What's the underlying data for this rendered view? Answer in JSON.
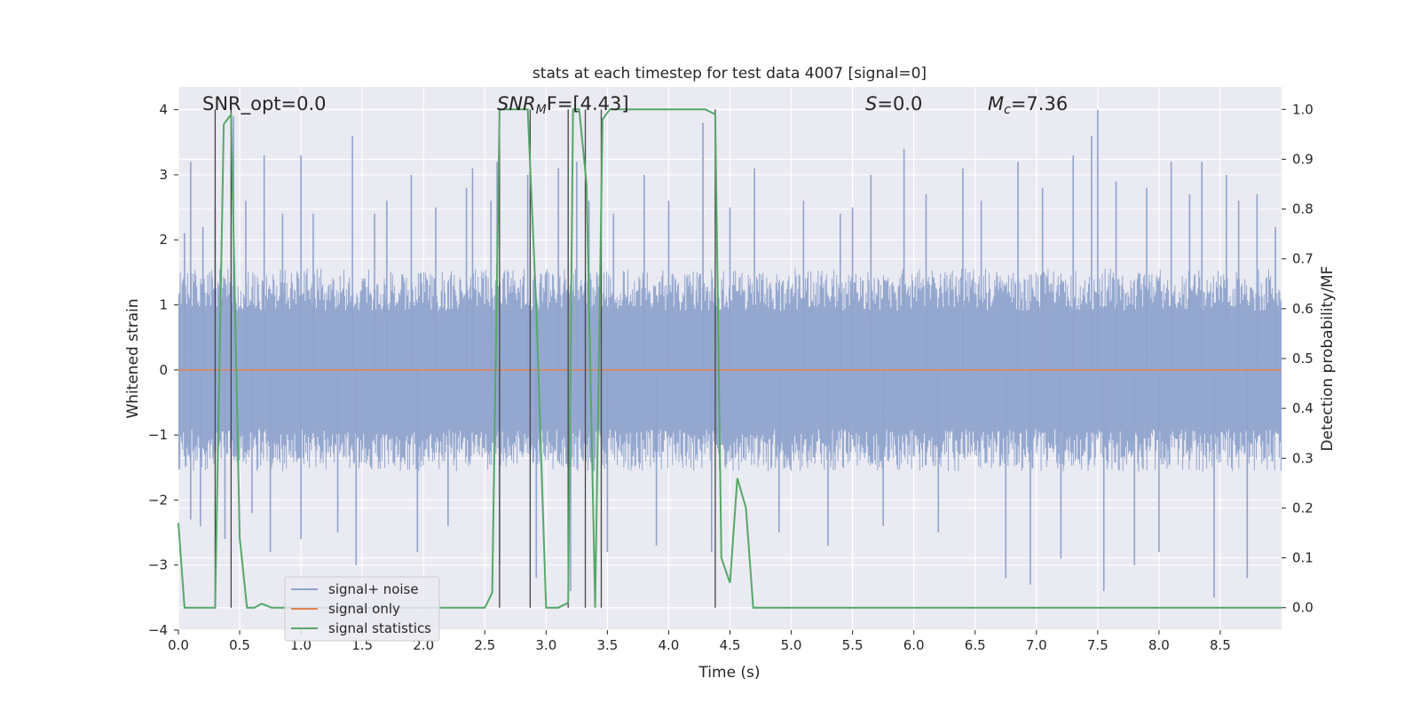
{
  "chart_data": {
    "type": "line",
    "title": "stats at each timestep for test data 4007 [signal=0]",
    "xlabel": "Time (s)",
    "ylabel": "Whitened strain",
    "y2label": "Detection probability/MF",
    "xlim": [
      0,
      9.0
    ],
    "ylim": [
      -4.0,
      4.35
    ],
    "y2lim": [
      -0.045,
      1.045
    ],
    "x_ticks": [
      0.0,
      0.5,
      1.0,
      1.5,
      2.0,
      2.5,
      3.0,
      3.5,
      4.0,
      4.5,
      5.0,
      5.5,
      6.0,
      6.5,
      7.0,
      7.5,
      8.0,
      8.5
    ],
    "x_tick_labels": [
      "0.0",
      "0.5",
      "1.0",
      "1.5",
      "2.0",
      "2.5",
      "3.0",
      "3.5",
      "4.0",
      "4.5",
      "5.0",
      "5.5",
      "6.0",
      "6.5",
      "7.0",
      "7.5",
      "8.0",
      "8.5"
    ],
    "y_ticks": [
      -4,
      -3,
      -2,
      -1,
      0,
      1,
      2,
      3,
      4
    ],
    "y_tick_labels": [
      "−4",
      "−3",
      "−2",
      "−1",
      "0",
      "1",
      "2",
      "3",
      "4"
    ],
    "y2_ticks": [
      0.0,
      0.1,
      0.2,
      0.3,
      0.4,
      0.5,
      0.6,
      0.7,
      0.8,
      0.9,
      1.0
    ],
    "y2_tick_labels": [
      "0.0",
      "0.1",
      "0.2",
      "0.3",
      "0.4",
      "0.5",
      "0.6",
      "0.7",
      "0.8",
      "0.9",
      "1.0"
    ],
    "grid": true,
    "legend_placement": "lower-left",
    "legend": [
      {
        "label": "signal+ noise",
        "color": "#8fa3cc"
      },
      {
        "label": "signal only",
        "color": "#dd8452"
      },
      {
        "label": "signal statistics",
        "color": "#55a868"
      }
    ],
    "annotations": {
      "snr_opt": "SNR_opt=0.0",
      "snr_mf_main": "SNR",
      "snr_mf_sub": "M",
      "snr_mf_rest": "F=[4.43]",
      "s_main": "S",
      "s_rest": "=0.0",
      "mc_main": "M",
      "mc_sub": "c",
      "mc_rest": "=7.36"
    },
    "series": [
      {
        "name": "signal+ noise",
        "color": "#8fa3cc",
        "axis": "left",
        "typical_range": [
          -1.3,
          1.3
        ],
        "peaks": [
          [
            0.05,
            2.1
          ],
          [
            0.1,
            -2.3
          ],
          [
            0.1,
            3.2
          ],
          [
            0.18,
            -2.4
          ],
          [
            0.2,
            2.2
          ],
          [
            0.3,
            2.5
          ],
          [
            0.38,
            -2.6
          ],
          [
            0.45,
            3.9
          ],
          [
            0.55,
            2.6
          ],
          [
            0.6,
            -2.2
          ],
          [
            0.7,
            3.3
          ],
          [
            0.75,
            -2.8
          ],
          [
            0.85,
            2.4
          ],
          [
            1.0,
            3.3
          ],
          [
            1.0,
            -2.6
          ],
          [
            1.1,
            2.4
          ],
          [
            1.3,
            -2.5
          ],
          [
            1.42,
            3.6
          ],
          [
            1.45,
            -3.0
          ],
          [
            1.6,
            2.4
          ],
          [
            1.7,
            2.6
          ],
          [
            1.9,
            3.0
          ],
          [
            1.95,
            -2.8
          ],
          [
            2.1,
            2.5
          ],
          [
            2.2,
            -2.4
          ],
          [
            2.35,
            2.8
          ],
          [
            2.4,
            3.1
          ],
          [
            2.55,
            2.6
          ],
          [
            2.6,
            3.2
          ],
          [
            2.62,
            -3.0
          ],
          [
            2.85,
            3.0
          ],
          [
            2.92,
            -3.2
          ],
          [
            3.1,
            3.1
          ],
          [
            3.2,
            -3.4
          ],
          [
            3.25,
            3.2
          ],
          [
            3.35,
            2.6
          ],
          [
            3.5,
            -2.8
          ],
          [
            3.55,
            2.4
          ],
          [
            3.8,
            3.0
          ],
          [
            3.9,
            -2.7
          ],
          [
            4.0,
            2.6
          ],
          [
            4.28,
            3.8
          ],
          [
            4.35,
            -2.8
          ],
          [
            4.5,
            2.5
          ],
          [
            4.7,
            3.1
          ],
          [
            4.9,
            -2.5
          ],
          [
            5.1,
            2.6
          ],
          [
            5.3,
            -2.7
          ],
          [
            5.4,
            2.4
          ],
          [
            5.5,
            2.5
          ],
          [
            5.65,
            3.0
          ],
          [
            5.75,
            -2.4
          ],
          [
            5.92,
            3.4
          ],
          [
            6.1,
            2.7
          ],
          [
            6.2,
            -2.5
          ],
          [
            6.4,
            3.1
          ],
          [
            6.55,
            2.6
          ],
          [
            6.75,
            -3.2
          ],
          [
            6.85,
            3.2
          ],
          [
            6.95,
            -3.3
          ],
          [
            7.05,
            2.8
          ],
          [
            7.2,
            -2.9
          ],
          [
            7.3,
            3.3
          ],
          [
            7.45,
            3.6
          ],
          [
            7.5,
            4.0
          ],
          [
            7.55,
            -3.4
          ],
          [
            7.65,
            2.9
          ],
          [
            7.8,
            -3.0
          ],
          [
            7.9,
            2.8
          ],
          [
            8.0,
            -2.8
          ],
          [
            8.1,
            3.2
          ],
          [
            8.25,
            2.7
          ],
          [
            8.35,
            3.2
          ],
          [
            8.45,
            -3.5
          ],
          [
            8.55,
            3.0
          ],
          [
            8.65,
            2.6
          ],
          [
            8.72,
            -3.2
          ],
          [
            8.8,
            2.7
          ],
          [
            8.95,
            2.2
          ]
        ]
      },
      {
        "name": "signal only",
        "color": "#dd8452",
        "axis": "left",
        "x": [
          0,
          9.0
        ],
        "y": [
          0,
          0
        ]
      },
      {
        "name": "signal statistics",
        "color": "#55a868",
        "axis": "right",
        "x": [
          0.0,
          0.05,
          0.15,
          0.25,
          0.3,
          0.37,
          0.43,
          0.5,
          0.56,
          0.62,
          0.68,
          0.76,
          0.85,
          1.0,
          1.5,
          2.0,
          2.5,
          2.56,
          2.62,
          2.68,
          2.75,
          2.85,
          2.92,
          3.0,
          3.1,
          3.18,
          3.22,
          3.27,
          3.33,
          3.4,
          3.46,
          3.52,
          3.6,
          3.8,
          4.0,
          4.2,
          4.3,
          4.38,
          4.43,
          4.5,
          4.56,
          4.63,
          4.69,
          4.75,
          5.0,
          6.0,
          7.0,
          8.0,
          9.0
        ],
        "y": [
          0.17,
          0.0,
          0.0,
          0.0,
          0.0,
          0.97,
          0.99,
          0.14,
          0.0,
          0.0,
          0.008,
          0.0,
          0.0,
          0.0,
          0.0,
          0.0,
          0.0,
          0.03,
          1.0,
          1.0,
          1.0,
          1.0,
          0.6,
          0.0,
          0.0,
          0.01,
          1.0,
          1.0,
          0.85,
          0.0,
          0.98,
          1.0,
          1.0,
          1.0,
          1.0,
          1.0,
          1.0,
          0.99,
          0.1,
          0.05,
          0.26,
          0.2,
          0.0,
          0.0,
          0.0,
          0.0,
          0.0,
          0.0,
          0.0
        ]
      }
    ],
    "vertical_lines": [
      0.3,
      0.43,
      2.62,
      2.87,
      3.18,
      3.32,
      3.45,
      4.38
    ]
  }
}
